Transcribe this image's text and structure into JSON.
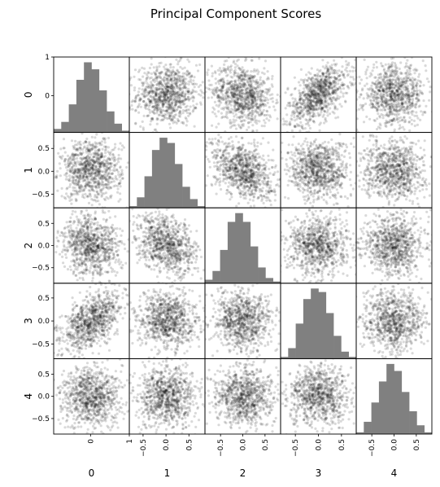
{
  "chart_data": {
    "type": "scatter_matrix",
    "title": "Principal Component Scores",
    "variables": [
      "0",
      "1",
      "2",
      "3",
      "4"
    ],
    "off_diagonal": "scatter",
    "diagonal": "histogram",
    "point_color": "#000000",
    "point_alpha": 0.15,
    "hist_color": "#808080",
    "hist_bins": 10,
    "ranges": [
      [
        -0.95,
        1.0
      ],
      [
        -0.8,
        0.85
      ],
      [
        -0.85,
        0.85
      ],
      [
        -0.82,
        0.82
      ],
      [
        -0.85,
        0.85
      ]
    ],
    "tick_values": [
      [
        0,
        1
      ],
      [
        -0.5,
        0.0,
        0.5
      ],
      [
        -0.5,
        0.0,
        0.5
      ],
      [
        -0.5,
        0.0,
        0.5
      ],
      [
        -0.5,
        0.0,
        0.5
      ]
    ],
    "left_tick_values": [
      [
        0,
        1
      ],
      [
        -0.5,
        0.0,
        0.5
      ],
      [
        -0.5,
        0.0,
        0.5
      ],
      [
        -0.5,
        0.0,
        0.5
      ],
      [
        -0.5,
        0.0,
        0.5
      ]
    ],
    "left_tick_labels": [
      [
        "0",
        "1"
      ],
      [
        "−0.5",
        "0.0",
        "0.5"
      ],
      [
        "−0.5",
        "0.0",
        "0.5"
      ],
      [
        "−0.5",
        "0.0",
        "0.5"
      ],
      [
        "−0.5",
        "0.0",
        "0.5"
      ]
    ],
    "bottom_tick_values": [
      [
        0,
        1
      ],
      [
        -0.5,
        0.0,
        0.5
      ],
      [
        -0.5,
        0.0,
        0.5
      ],
      [
        -0.5,
        0.0,
        0.5
      ],
      [
        -0.5,
        0.0,
        0.5
      ]
    ],
    "bottom_tick_labels": [
      [
        "0",
        "1"
      ],
      [
        "−0.5",
        "0.0",
        "0.5"
      ],
      [
        "−0.5",
        "0.0",
        "0.5"
      ],
      [
        "−0.5",
        "0.0",
        "0.5"
      ],
      [
        "−0.5",
        "0.0",
        "0.5"
      ]
    ],
    "histograms": [
      [
        2,
        6,
        16,
        30,
        40,
        36,
        24,
        12,
        5,
        1
      ],
      [
        1,
        6,
        18,
        33,
        40,
        37,
        25,
        12,
        5,
        1
      ],
      [
        2,
        7,
        19,
        35,
        40,
        35,
        21,
        9,
        3,
        1
      ],
      [
        1,
        6,
        20,
        34,
        40,
        38,
        26,
        13,
        4,
        1
      ],
      [
        1,
        7,
        18,
        30,
        40,
        36,
        24,
        13,
        5,
        1
      ]
    ],
    "correlations": {
      "0-3": 0.55,
      "1-2": -0.35,
      "0-2": -0.15
    }
  }
}
